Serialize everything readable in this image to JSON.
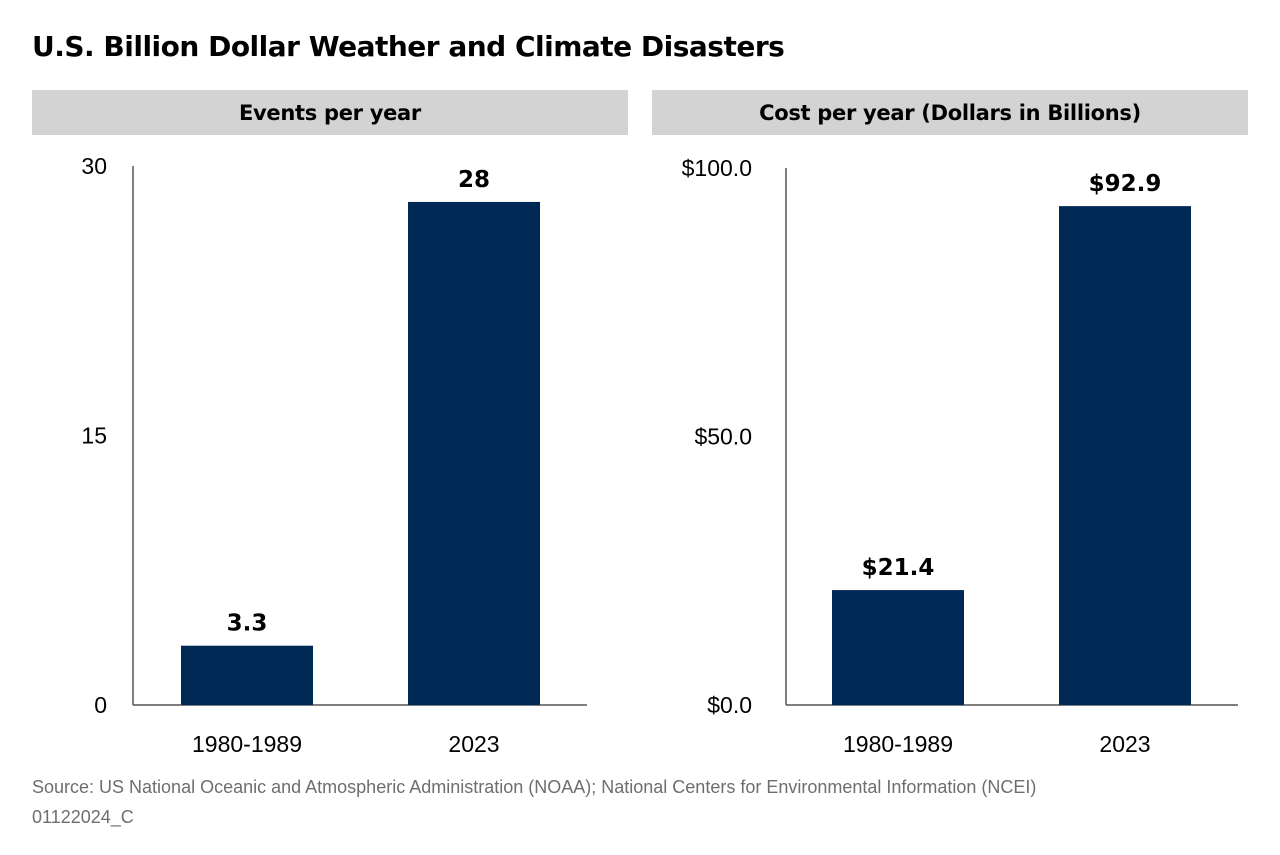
{
  "title": "U.S. Billion Dollar Weather and Climate Disasters",
  "source": "Source: US National Oceanic and Atmospheric Administration (NOAA); National Centers for Environmental Information (NCEI)",
  "code": "01122024_C",
  "colors": {
    "bar": "#002855",
    "header_background": "#d3d3d3",
    "axis": "#555555",
    "note_text": "#6e6e6e"
  },
  "chart_data": [
    {
      "type": "bar",
      "title": "Events per year",
      "categories": [
        "1980-1989",
        "2023"
      ],
      "values": [
        3.3,
        28
      ],
      "value_labels": [
        "3.3",
        "28"
      ],
      "ylim": [
        0,
        30
      ],
      "yticks": [
        0,
        15,
        30
      ],
      "ytick_labels": [
        "0",
        "15",
        "30"
      ],
      "xlabel": "",
      "ylabel": "",
      "grid": false,
      "legend": "none"
    },
    {
      "type": "bar",
      "title": "Cost per year (Dollars in Billions)",
      "categories": [
        "1980-1989",
        "2023"
      ],
      "values": [
        21.4,
        92.9
      ],
      "value_labels": [
        "$21.4",
        "$92.9"
      ],
      "ylim": [
        0,
        100
      ],
      "yticks": [
        0,
        50,
        100
      ],
      "ytick_labels": [
        "$0.0",
        "$50.0",
        "$100.0"
      ],
      "xlabel": "",
      "ylabel": "",
      "grid": false,
      "legend": "none"
    }
  ]
}
